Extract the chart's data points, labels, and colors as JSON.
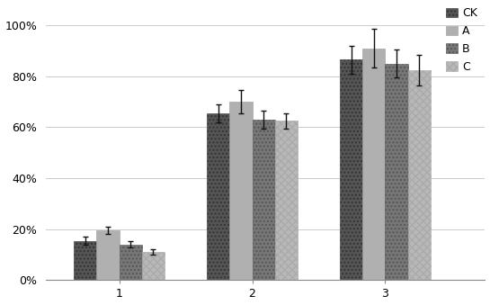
{
  "categories": [
    1,
    2,
    3
  ],
  "series": {
    "CK": [
      0.155,
      0.655,
      0.865
    ],
    "A": [
      0.195,
      0.7,
      0.91
    ],
    "B": [
      0.14,
      0.63,
      0.85
    ],
    "C": [
      0.11,
      0.625,
      0.825
    ]
  },
  "errors": {
    "CK": [
      0.015,
      0.035,
      0.055
    ],
    "A": [
      0.015,
      0.045,
      0.075
    ],
    "B": [
      0.012,
      0.035,
      0.055
    ],
    "C": [
      0.01,
      0.03,
      0.06
    ]
  },
  "bar_width": 0.17,
  "ylim": [
    0,
    1.08
  ],
  "yticks": [
    0,
    0.2,
    0.4,
    0.6,
    0.8,
    1.0
  ],
  "yticklabels": [
    "0%",
    "20%",
    "40%",
    "60%",
    "80%",
    "100%"
  ],
  "xticks": [
    1,
    2,
    3
  ],
  "xticklabels": [
    "1",
    "2",
    "3"
  ],
  "legend_labels": [
    "CK",
    "A",
    "B",
    "C"
  ],
  "xlim": [
    0.45,
    3.75
  ]
}
